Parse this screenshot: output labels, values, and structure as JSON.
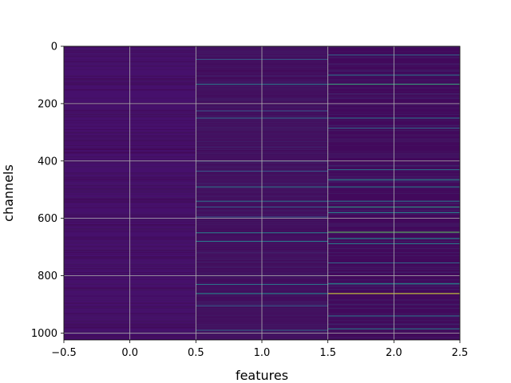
{
  "chart_data": {
    "type": "heatmap",
    "title": "",
    "xlabel": "features",
    "ylabel": "channels",
    "colormap": "viridis",
    "grid": true,
    "xlim": [
      -0.5,
      2.5
    ],
    "ylim": [
      1024,
      0
    ],
    "xticks": [
      -0.5,
      0.0,
      0.5,
      1.0,
      1.5,
      2.0,
      2.5
    ],
    "xtick_labels": [
      "−0.5",
      "0.0",
      "0.5",
      "1.0",
      "1.5",
      "2.0",
      "2.5"
    ],
    "yticks": [
      0,
      200,
      400,
      600,
      800,
      1000
    ],
    "ytick_labels": [
      "0",
      "200",
      "400",
      "600",
      "800",
      "1000"
    ],
    "columns": [
      0,
      1,
      2
    ],
    "rows": 1024,
    "base_colors": [
      "#46106c",
      "#431060",
      "#42095c"
    ],
    "highlights": [
      {
        "col": 1,
        "row": 45,
        "level": 0.3
      },
      {
        "col": 1,
        "row": 132,
        "level": 0.4
      },
      {
        "col": 1,
        "row": 225,
        "level": 0.28
      },
      {
        "col": 1,
        "row": 250,
        "level": 0.35
      },
      {
        "col": 1,
        "row": 400,
        "level": 0.3
      },
      {
        "col": 1,
        "row": 435,
        "level": 0.28
      },
      {
        "col": 1,
        "row": 490,
        "level": 0.42
      },
      {
        "col": 1,
        "row": 540,
        "level": 0.38
      },
      {
        "col": 1,
        "row": 560,
        "level": 0.3
      },
      {
        "col": 1,
        "row": 595,
        "level": 0.28
      },
      {
        "col": 1,
        "row": 650,
        "level": 0.45
      },
      {
        "col": 1,
        "row": 680,
        "level": 0.4
      },
      {
        "col": 1,
        "row": 830,
        "level": 0.4
      },
      {
        "col": 1,
        "row": 862,
        "level": 0.5
      },
      {
        "col": 1,
        "row": 905,
        "level": 0.3
      },
      {
        "col": 1,
        "row": 990,
        "level": 0.35
      },
      {
        "col": 2,
        "row": 30,
        "level": 0.35
      },
      {
        "col": 2,
        "row": 100,
        "level": 0.4
      },
      {
        "col": 2,
        "row": 132,
        "level": 0.6
      },
      {
        "col": 2,
        "row": 250,
        "level": 0.4
      },
      {
        "col": 2,
        "row": 285,
        "level": 0.35
      },
      {
        "col": 2,
        "row": 430,
        "level": 0.4
      },
      {
        "col": 2,
        "row": 465,
        "level": 0.5
      },
      {
        "col": 2,
        "row": 490,
        "level": 0.45
      },
      {
        "col": 2,
        "row": 540,
        "level": 0.4
      },
      {
        "col": 2,
        "row": 560,
        "level": 0.55
      },
      {
        "col": 2,
        "row": 580,
        "level": 0.45
      },
      {
        "col": 2,
        "row": 648,
        "level": 0.75
      },
      {
        "col": 2,
        "row": 670,
        "level": 0.5
      },
      {
        "col": 2,
        "row": 688,
        "level": 0.45
      },
      {
        "col": 2,
        "row": 755,
        "level": 0.35
      },
      {
        "col": 2,
        "row": 828,
        "level": 0.5
      },
      {
        "col": 2,
        "row": 862,
        "level": 0.95
      },
      {
        "col": 2,
        "row": 940,
        "level": 0.4
      },
      {
        "col": 2,
        "row": 985,
        "level": 0.45
      }
    ]
  }
}
